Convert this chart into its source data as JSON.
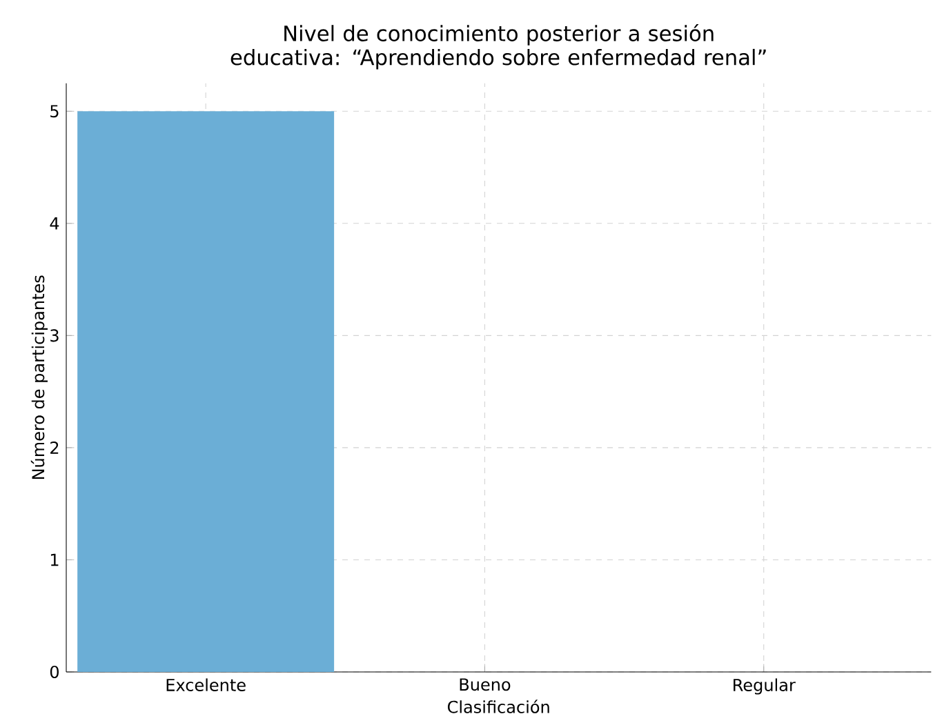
{
  "chart_data": {
    "type": "bar",
    "title": "Nivel de conocimiento posterior a sesión educativa: “Aprendiendo sobre enfermedad renal”",
    "xlabel": "Clasificación",
    "ylabel": "Número de participantes",
    "categories": [
      "Excelente",
      "Bueno",
      "Regular"
    ],
    "values": [
      5,
      0,
      0
    ],
    "color": "#6baed6",
    "ylim": [
      0,
      5.25
    ],
    "yticks": [
      0,
      1,
      2,
      3,
      4,
      5
    ],
    "grid": true
  }
}
